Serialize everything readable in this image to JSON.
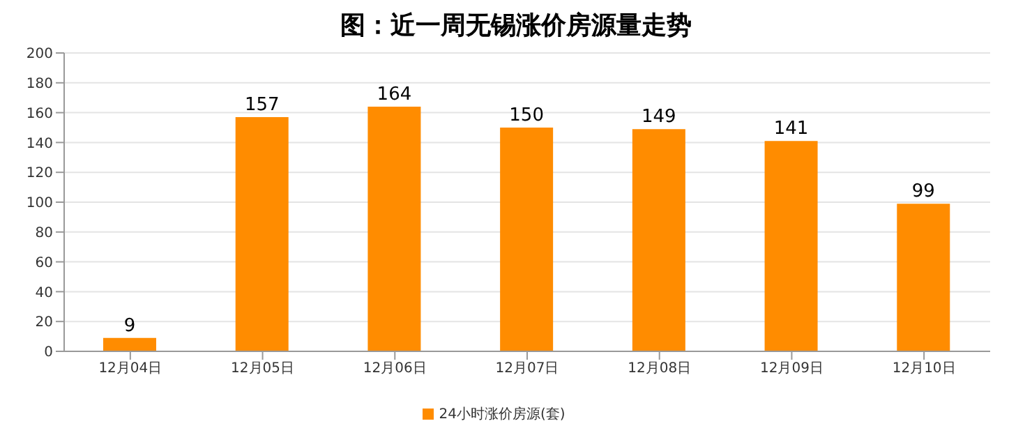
{
  "chart_data": {
    "type": "bar",
    "title": "图：近一周无锡涨价房源量走势",
    "categories": [
      "12月04日",
      "12月05日",
      "12月06日",
      "12月07日",
      "12月08日",
      "12月09日",
      "12月10日"
    ],
    "series": [
      {
        "name": "24小时涨价房源(套)",
        "color": "#ff8c00",
        "values": [
          9,
          157,
          164,
          150,
          149,
          141,
          99
        ]
      }
    ],
    "ylim": [
      0,
      200
    ],
    "yticks": [
      0,
      20,
      40,
      60,
      80,
      100,
      120,
      140,
      160,
      180,
      200
    ],
    "grid": "y",
    "legend": "bottom",
    "data_labels": true
  }
}
